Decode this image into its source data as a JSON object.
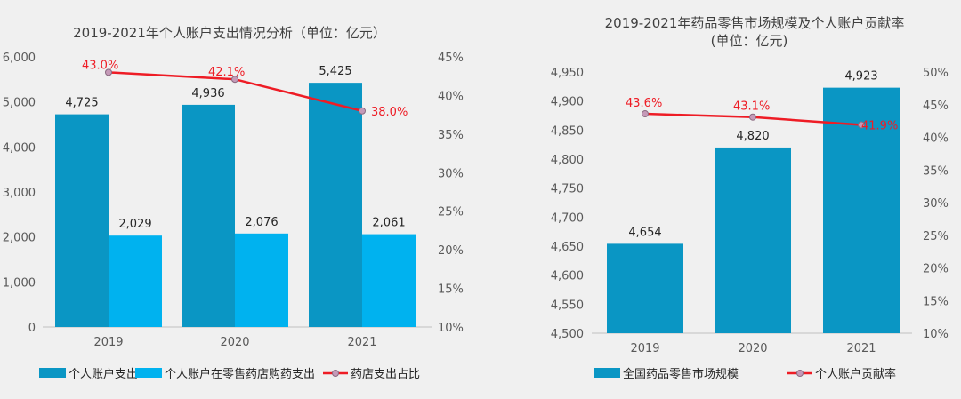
{
  "colors": {
    "bar_dark": "#0a96c4",
    "bar_light": "#00b2ef",
    "line_red": "#ee1c25",
    "marker_fill": "#c59ab8",
    "axis_text": "#595959",
    "title_text": "#404040",
    "label_text": "#262626",
    "background": "#f0f0f0"
  },
  "chart_data": [
    {
      "type": "bar",
      "title": "2019-2021年个人账户支出情况分析（单位：亿元）",
      "categories": [
        "2019",
        "2020",
        "2021"
      ],
      "ylim": [
        0,
        6000
      ],
      "y_ticks": [
        "0",
        "1,000",
        "2,000",
        "3,000",
        "4,000",
        "5,000",
        "6,000"
      ],
      "y2lim": [
        10,
        45
      ],
      "y2_ticks": [
        "10%",
        "15%",
        "20%",
        "25%",
        "30%",
        "35%",
        "40%",
        "45%"
      ],
      "grid": false,
      "legend_position": "bottom",
      "series": [
        {
          "name": "个人账户支出",
          "type": "bar",
          "axis": "left",
          "values": [
            4725,
            4936,
            5425
          ],
          "labels": [
            "4,725",
            "4,936",
            "5,425"
          ]
        },
        {
          "name": "个人账户在零售药店购药支出",
          "type": "bar",
          "axis": "left",
          "values": [
            2029,
            2076,
            2061
          ],
          "labels": [
            "2,029",
            "2,076",
            "2,061"
          ]
        },
        {
          "name": "药店支出占比",
          "type": "line",
          "axis": "right",
          "values": [
            43.0,
            42.1,
            38.0
          ],
          "labels": [
            "43.0%",
            "42.1%",
            "38.0%"
          ]
        }
      ]
    },
    {
      "type": "bar",
      "title": "2019-2021年药品零售市场规模及个人账户贡献率",
      "subtitle": "(单位：亿元)",
      "categories": [
        "2019",
        "2020",
        "2021"
      ],
      "ylim": [
        4500,
        4950
      ],
      "y_ticks": [
        "4,500",
        "4,550",
        "4,600",
        "4,650",
        "4,700",
        "4,750",
        "4,800",
        "4,850",
        "4,900",
        "4,950"
      ],
      "y2lim": [
        10,
        50
      ],
      "y2_ticks": [
        "10%",
        "15%",
        "20%",
        "25%",
        "30%",
        "35%",
        "40%",
        "45%",
        "50%"
      ],
      "grid": false,
      "legend_position": "bottom",
      "series": [
        {
          "name": "全国药品零售市场规模",
          "type": "bar",
          "axis": "left",
          "values": [
            4654,
            4820,
            4923
          ],
          "labels": [
            "4,654",
            "4,820",
            "4,923"
          ]
        },
        {
          "name": "个人账户贡献率",
          "type": "line",
          "axis": "right",
          "values": [
            43.6,
            43.1,
            41.9
          ],
          "labels": [
            "43.6%",
            "43.1%",
            "41.9%"
          ]
        }
      ]
    }
  ]
}
